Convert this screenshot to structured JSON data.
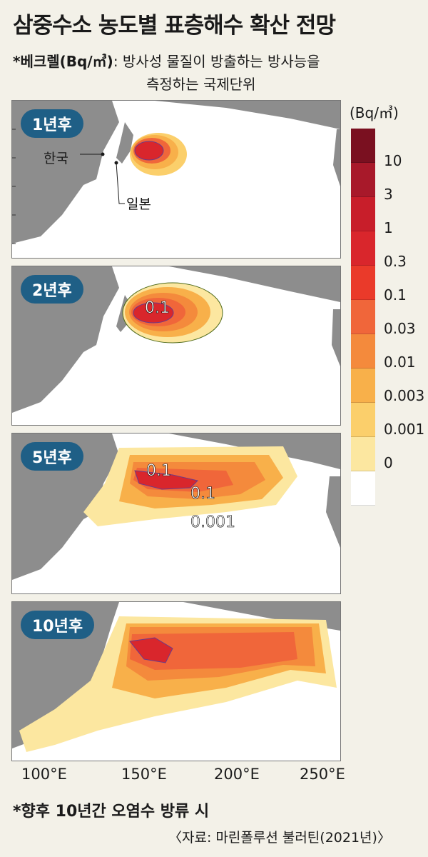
{
  "title": "삼중수소 농도별 표층해수 확산 전망",
  "note": {
    "term": "*베크렐(Bq/㎥)",
    "definition_line1": ": 방사성 물질이 방출하는 방사능을",
    "definition_line2": "측정하는 국제단위"
  },
  "panels": [
    {
      "label": "1년후"
    },
    {
      "label": "2년후"
    },
    {
      "label": "5년후"
    },
    {
      "label": "10년후"
    }
  ],
  "place_labels": {
    "korea": "한국",
    "japan": "일본"
  },
  "contour_labels": {
    "p2": [
      "0.1"
    ],
    "p5": [
      "0.1",
      "0.1",
      "0.001"
    ]
  },
  "legend": {
    "unit": "(Bq/㎥)",
    "ticks": [
      "10",
      "3",
      "1",
      "0.3",
      "0.1",
      "0.03",
      "0.01",
      "0.003",
      "0.001",
      "0"
    ],
    "colors": [
      "#7a1020",
      "#a8192a",
      "#c81e2a",
      "#d9262c",
      "#ea3a2a",
      "#f0663a",
      "#f48a3c",
      "#f8b04a",
      "#fbcf6b",
      "#fce7a0",
      "#ffffff"
    ]
  },
  "x_axis": [
    "100°E",
    "150°E",
    "200°E",
    "250°E"
  ],
  "footnote": "*향후 10년간 오염수 방류 시",
  "source": "〈자료: 마린폴루션 불러틴(2021년)〉"
}
